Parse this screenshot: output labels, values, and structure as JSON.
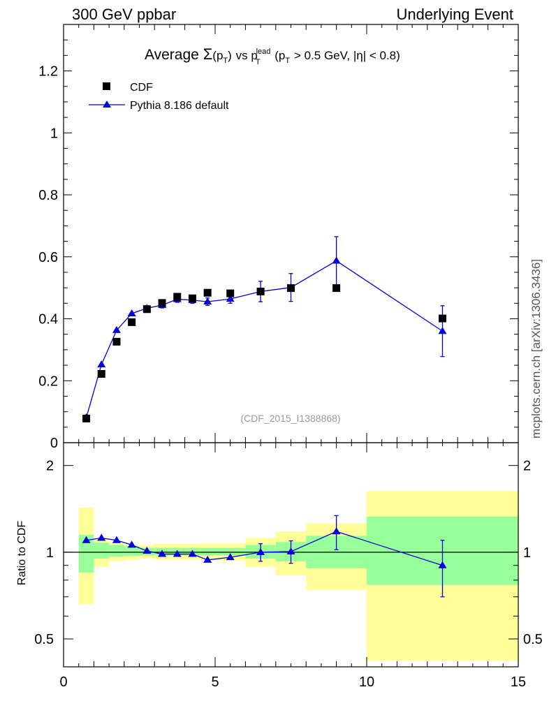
{
  "header": {
    "left": "300 GeV ppbar",
    "right": "Underlying Event"
  },
  "side_label": "mcplots.cern.ch [arXiv:1306.3436]",
  "main_title_parts": {
    "average": "Average",
    "sigma": "Σ",
    "ppT": "(p",
    "T": "T",
    "close": ")",
    "vs": "vs p",
    "lead": "lead",
    "cut_open": "(p",
    "cut_rest": "> 0.5 GeV, |η| < 0.8)"
  },
  "watermark": "(CDF_2015_I1388868)",
  "colors": {
    "data": "#000000",
    "mc": "#0000dd",
    "band_inner": "#99ff99",
    "band_outer": "#ffff99"
  },
  "chart_data": [
    {
      "type": "scatter",
      "title": "Average Σ(pT) vs pT lead (pT > 0.5 GeV, |η| < 0.8)",
      "xlabel": "",
      "ylabel": "",
      "xlim": [
        0,
        15
      ],
      "ylim": [
        0,
        1.35
      ],
      "grid": false,
      "legend_position": "top-left",
      "yticks": [
        "0",
        "0.2",
        "0.4",
        "0.6",
        "0.8",
        "1",
        "1.2"
      ],
      "series": [
        {
          "name": "CDF",
          "marker": "square",
          "x": [
            0.75,
            1.25,
            1.75,
            2.25,
            2.75,
            3.25,
            3.75,
            4.25,
            4.75,
            5.5,
            6.5,
            7.5,
            9.0,
            12.5
          ],
          "y": [
            0.078,
            0.222,
            0.326,
            0.389,
            0.431,
            0.451,
            0.471,
            0.466,
            0.484,
            0.482,
            0.488,
            0.499,
            0.499,
            0.401
          ]
        },
        {
          "name": "Pythia 8.186 default",
          "marker": "triangle",
          "x": [
            0.75,
            1.25,
            1.75,
            2.25,
            2.75,
            3.25,
            3.75,
            4.25,
            4.75,
            5.5,
            6.5,
            7.5,
            9.0,
            12.5
          ],
          "y": [
            0.081,
            0.252,
            0.363,
            0.417,
            0.434,
            0.444,
            0.463,
            0.46,
            0.455,
            0.464,
            0.488,
            0.501,
            0.587,
            0.36
          ],
          "yerr": [
            0.003,
            0.005,
            0.006,
            0.007,
            0.008,
            0.009,
            0.01,
            0.01,
            0.012,
            0.014,
            0.033,
            0.045,
            0.078,
            0.082
          ]
        }
      ]
    },
    {
      "type": "line",
      "title": "",
      "xlabel": "",
      "ylabel": "Ratio to CDF",
      "xlim": [
        0,
        15
      ],
      "ylim": [
        0.4,
        2.4
      ],
      "log_y": true,
      "grid": false,
      "xticks": [
        "0",
        "5",
        "10",
        "15"
      ],
      "yticks": [
        "0.5",
        "1",
        "2"
      ],
      "reference_line": 1,
      "bands": {
        "bins": [
          [
            0.5,
            1.0
          ],
          [
            1.0,
            1.5
          ],
          [
            1.5,
            2.0
          ],
          [
            2.0,
            2.5
          ],
          [
            2.5,
            3.0
          ],
          [
            3.0,
            3.5
          ],
          [
            3.5,
            4.0
          ],
          [
            4.0,
            4.5
          ],
          [
            4.5,
            5.0
          ],
          [
            5.0,
            6.0
          ],
          [
            6.0,
            7.0
          ],
          [
            7.0,
            8.0
          ],
          [
            8.0,
            10.0
          ],
          [
            10.0,
            15.0
          ]
        ],
        "inner_low": [
          0.85,
          0.95,
          0.965,
          0.97,
          0.975,
          0.975,
          0.975,
          0.975,
          0.975,
          0.975,
          0.95,
          0.93,
          0.88,
          0.77
        ],
        "inner_high": [
          1.15,
          1.08,
          1.06,
          1.05,
          1.035,
          1.035,
          1.035,
          1.035,
          1.035,
          1.035,
          1.06,
          1.085,
          1.14,
          1.33
        ],
        "outer_low": [
          0.66,
          0.89,
          0.93,
          0.94,
          0.955,
          0.945,
          0.945,
          0.945,
          0.94,
          0.935,
          0.89,
          0.83,
          0.74,
          0.42
        ],
        "outer_high": [
          1.43,
          1.11,
          1.08,
          1.06,
          1.06,
          1.07,
          1.07,
          1.07,
          1.075,
          1.075,
          1.12,
          1.18,
          1.26,
          1.63
        ]
      },
      "series": [
        {
          "name": "Pythia 8.186 default",
          "x": [
            0.75,
            1.25,
            1.75,
            2.25,
            2.75,
            3.25,
            3.75,
            4.25,
            4.75,
            5.5,
            6.5,
            7.5,
            9.0,
            12.5
          ],
          "y": [
            1.1,
            1.12,
            1.1,
            1.06,
            1.01,
            0.985,
            0.985,
            0.985,
            0.94,
            0.96,
            1.0,
            1.005,
            1.18,
            0.9
          ],
          "yerr": [
            0.005,
            0.006,
            0.006,
            0.006,
            0.007,
            0.008,
            0.009,
            0.009,
            0.01,
            0.012,
            0.07,
            0.09,
            0.16,
            0.2
          ]
        }
      ]
    }
  ]
}
